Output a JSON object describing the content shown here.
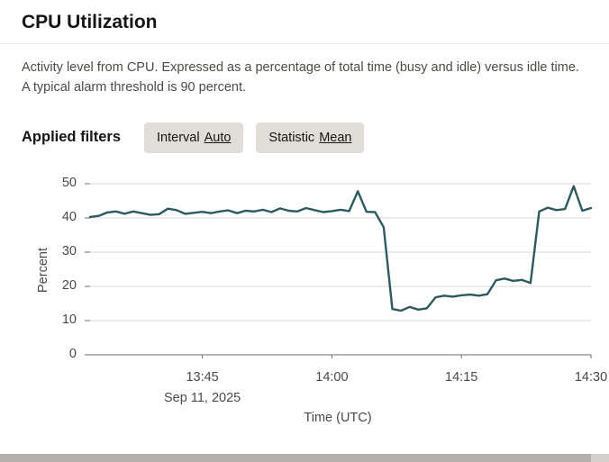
{
  "page": {
    "title": "CPU Utilization",
    "description": "Activity level from CPU. Expressed as a percentage of total time (busy and idle) versus idle time. A typical alarm threshold is 90 percent.",
    "applied_filters_label": "Applied filters",
    "filters": [
      {
        "label": "Interval",
        "value": "Auto"
      },
      {
        "label": "Statistic",
        "value": "Mean"
      }
    ]
  },
  "chart_data": {
    "type": "line",
    "title": "CPU Utilization",
    "xlabel": "Time (UTC)",
    "ylabel": "Percent",
    "ylim": [
      0,
      50
    ],
    "yticks": [
      0,
      10,
      20,
      30,
      40,
      50
    ],
    "xticks": [
      {
        "time": "13:45",
        "sublabel": "Sep 11, 2025"
      },
      {
        "time": "14:00"
      },
      {
        "time": "14:15"
      },
      {
        "time": "14:30"
      }
    ],
    "grid": "horizontal",
    "legend": "none",
    "line_color": "#2d5a5f",
    "series": [
      {
        "name": "CPU Utilization (Mean)",
        "x_times": [
          "13:32",
          "13:33",
          "13:34",
          "13:35",
          "13:36",
          "13:37",
          "13:38",
          "13:39",
          "13:40",
          "13:41",
          "13:42",
          "13:43",
          "13:44",
          "13:45",
          "13:46",
          "13:47",
          "13:48",
          "13:49",
          "13:50",
          "13:51",
          "13:52",
          "13:53",
          "13:54",
          "13:55",
          "13:56",
          "13:57",
          "13:58",
          "13:59",
          "14:00",
          "14:01",
          "14:02",
          "14:03",
          "14:04",
          "14:05",
          "14:06",
          "14:07",
          "14:08",
          "14:09",
          "14:10",
          "14:11",
          "14:12",
          "14:13",
          "14:14",
          "14:15",
          "14:16",
          "14:17",
          "14:18",
          "14:19",
          "14:20",
          "14:21",
          "14:22",
          "14:23",
          "14:24",
          "14:25",
          "14:26",
          "14:27",
          "14:28",
          "14:29",
          "14:30"
        ],
        "values": [
          40.3,
          40.6,
          41.6,
          41.9,
          41.2,
          41.9,
          41.4,
          40.9,
          41.1,
          42.7,
          42.3,
          41.2,
          41.5,
          41.8,
          41.4,
          41.9,
          42.2,
          41.4,
          42.1,
          41.9,
          42.4,
          41.7,
          42.8,
          42.1,
          41.9,
          42.9,
          42.3,
          41.7,
          42.0,
          42.4,
          42.0,
          47.8,
          41.8,
          41.7,
          37.3,
          13.4,
          12.9,
          14.0,
          13.2,
          13.6,
          16.8,
          17.3,
          17.0,
          17.4,
          17.6,
          17.3,
          17.7,
          21.8,
          22.3,
          21.6,
          21.9,
          21.0,
          41.9,
          43.0,
          42.3,
          42.6,
          49.3,
          42.1,
          42.9
        ]
      }
    ]
  }
}
